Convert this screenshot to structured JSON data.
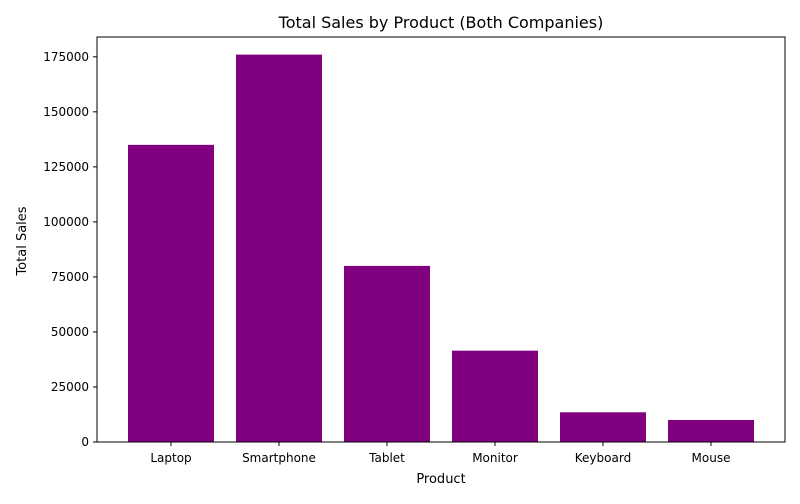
{
  "chart_data": {
    "type": "bar",
    "title": "Total Sales by Product (Both Companies)",
    "xlabel": "Product",
    "ylabel": "Total Sales",
    "categories": [
      "Laptop",
      "Smartphone",
      "Tablet",
      "Monitor",
      "Keyboard",
      "Mouse"
    ],
    "values": [
      135000,
      176000,
      80000,
      41500,
      13500,
      10000
    ],
    "ylim": [
      0,
      184000
    ],
    "yticks": [
      0,
      25000,
      50000,
      75000,
      100000,
      125000,
      150000,
      175000
    ],
    "bar_color": "#800080",
    "grid": false
  }
}
